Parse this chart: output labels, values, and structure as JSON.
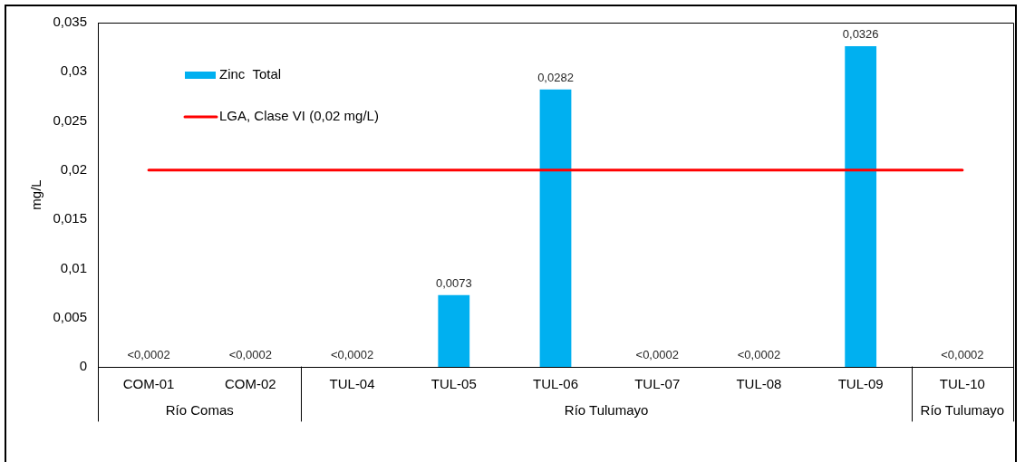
{
  "chart_data": {
    "type": "bar",
    "ylabel": "mg/L",
    "categories": [
      "COM-01",
      "COM-02",
      "TUL-04",
      "TUL-05",
      "TUL-06",
      "TUL-07",
      "TUL-08",
      "TUL-09",
      "TUL-10"
    ],
    "series": [
      {
        "name": "Zinc  Total",
        "color": "#00b0f0",
        "values": [
          0,
          0,
          0,
          0.0073,
          0.0282,
          0,
          0,
          0.0326,
          0
        ],
        "value_labels": [
          "<0,0002",
          "<0,0002",
          "<0,0002",
          "0,0073",
          "0,0282",
          "<0,0002",
          "<0,0002",
          "0,0326",
          "<0,0002"
        ]
      }
    ],
    "ylim": [
      0,
      0.035
    ],
    "yticks": [
      0,
      {
        "value": 0.005,
        "label": "0,005"
      },
      {
        "value": 0.01,
        "label": "0,01"
      },
      {
        "value": 0.015,
        "label": "0,015"
      },
      {
        "value": 0.02,
        "label": "0,02"
      },
      {
        "value": 0.025,
        "label": "0,025"
      },
      {
        "value": 0.03,
        "label": "0,03"
      },
      {
        "value": 0.035,
        "label": "0,035"
      }
    ],
    "ref_lines": [
      {
        "axis": "y",
        "value": 0.02,
        "label": "LGA, Clase VI (0,02 mg/L)",
        "color": "#ff0000"
      }
    ],
    "annotations": [
      "Río Comas",
      "Río Tulumayo",
      "Río Tulumayo"
    ],
    "grid": false,
    "legend": "top left"
  }
}
